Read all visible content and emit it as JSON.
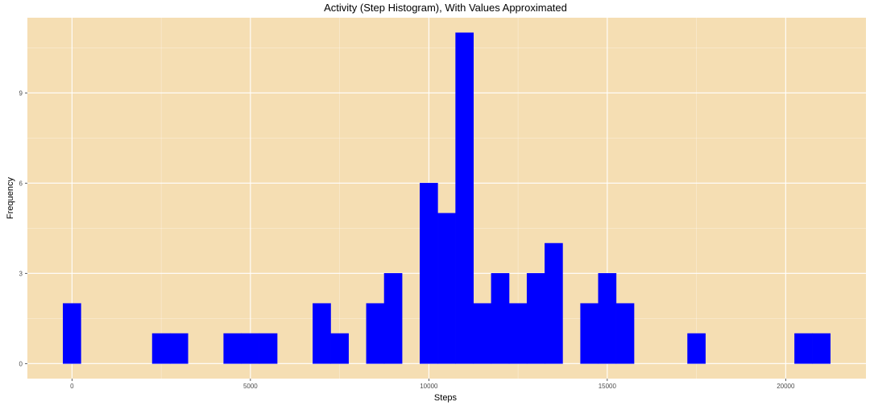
{
  "chart_data": {
    "type": "bar",
    "title": "Activity (Step Histogram), With Values Approximated",
    "xlabel": "Steps",
    "ylabel": "Frequency",
    "binwidth": 500,
    "xlim": [
      -1250,
      22250
    ],
    "ylim": [
      -0.5,
      11.5
    ],
    "xticks": [
      0,
      5000,
      10000,
      15000,
      20000
    ],
    "yticks": [
      0,
      3,
      6,
      9
    ],
    "grid": true,
    "legend": "none",
    "colors": {
      "bar": "#0000ff",
      "panel": "#f5deb3",
      "grid": "#ffffff"
    },
    "bins": [
      {
        "x": 0,
        "count": 2
      },
      {
        "x": 2500,
        "count": 1
      },
      {
        "x": 3000,
        "count": 1
      },
      {
        "x": 4500,
        "count": 1
      },
      {
        "x": 5000,
        "count": 1
      },
      {
        "x": 5500,
        "count": 1
      },
      {
        "x": 7000,
        "count": 2
      },
      {
        "x": 7500,
        "count": 1
      },
      {
        "x": 8500,
        "count": 2
      },
      {
        "x": 9000,
        "count": 3
      },
      {
        "x": 10000,
        "count": 6
      },
      {
        "x": 10500,
        "count": 5
      },
      {
        "x": 11000,
        "count": 11
      },
      {
        "x": 11500,
        "count": 2
      },
      {
        "x": 12000,
        "count": 3
      },
      {
        "x": 12500,
        "count": 2
      },
      {
        "x": 13000,
        "count": 3
      },
      {
        "x": 13500,
        "count": 4
      },
      {
        "x": 14500,
        "count": 2
      },
      {
        "x": 15000,
        "count": 3
      },
      {
        "x": 15500,
        "count": 2
      },
      {
        "x": 17500,
        "count": 1
      },
      {
        "x": 20500,
        "count": 1
      },
      {
        "x": 21000,
        "count": 1
      }
    ]
  }
}
